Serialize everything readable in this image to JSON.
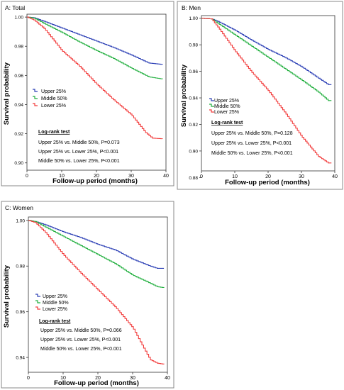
{
  "chart_data": [
    {
      "type": "line",
      "title": "A: Total",
      "xlabel": "Follow-up period (months)",
      "ylabel": "Survival probability",
      "xlim": [
        0,
        40
      ],
      "ylim": [
        0.895,
        1.002
      ],
      "xticks": [
        0,
        10,
        20,
        30,
        40
      ],
      "xtick_labels": [
        "0",
        "10",
        "20",
        "30",
        "40"
      ],
      "yticks": [
        0.9,
        0.92,
        0.94,
        0.96,
        0.98,
        1.0
      ],
      "ytick_labels": [
        "0.90",
        "0.92",
        "0.94",
        "0.96",
        "0.98",
        "1.00"
      ],
      "grid": false,
      "series": [
        {
          "name": "Upper 25%",
          "color": "#2b3fb5",
          "x": [
            0,
            2,
            5,
            10,
            15,
            20,
            25,
            30,
            35,
            39
          ],
          "values": [
            1.0,
            0.9995,
            0.997,
            0.9925,
            0.988,
            0.9835,
            0.979,
            0.974,
            0.9685,
            0.9675
          ]
        },
        {
          "name": "Middle 50%",
          "color": "#1fae3c",
          "x": [
            0,
            2,
            5,
            10,
            15,
            20,
            25,
            30,
            35,
            39
          ],
          "values": [
            1.0,
            0.9993,
            0.9955,
            0.9895,
            0.983,
            0.977,
            0.9715,
            0.965,
            0.959,
            0.9575
          ]
        },
        {
          "name": "Lower 25%",
          "color": "#f23a3a",
          "x": [
            0,
            2,
            5,
            10,
            15,
            20,
            25,
            30,
            34,
            36,
            39
          ],
          "values": [
            1.0,
            0.998,
            0.992,
            0.977,
            0.9665,
            0.954,
            0.943,
            0.933,
            0.921,
            0.917,
            0.9165
          ]
        }
      ],
      "legend_position": "middle-left",
      "annotation_title": "Log-rank test",
      "annotations": [
        "Upper 25% vs. Middle 50%, P=0.073",
        "Upper 25% vs. Lower 25%, P<0.001",
        "Middle 50% vs. Lower 25%, P<0.001"
      ]
    },
    {
      "type": "line",
      "title": "B: Men",
      "xlabel": "Follow-up period (months)",
      "ylabel": "Survival probability",
      "xlim": [
        0,
        40
      ],
      "ylim": [
        0.885,
        1.002
      ],
      "xticks": [
        0,
        10,
        20,
        30,
        40
      ],
      "xtick_labels": [
        "0",
        "10",
        "20",
        "30",
        "40"
      ],
      "yticks": [
        0.88,
        0.9,
        0.92,
        0.94,
        0.96,
        0.98,
        1.0
      ],
      "ytick_labels": [
        "0.88",
        "0.90",
        "0.92",
        "0.94",
        "0.96",
        "0.98",
        "1.00"
      ],
      "grid": false,
      "series": [
        {
          "name": "Upper 25%",
          "color": "#2b3fb5",
          "x": [
            0,
            3,
            5,
            10,
            15,
            20,
            25,
            30,
            35,
            38,
            39
          ],
          "values": [
            1.0,
            0.9995,
            0.9975,
            0.991,
            0.9835,
            0.9765,
            0.9705,
            0.9635,
            0.955,
            0.95,
            0.95
          ]
        },
        {
          "name": "Middle 50%",
          "color": "#1fae3c",
          "x": [
            0,
            3,
            5,
            10,
            15,
            20,
            25,
            30,
            35,
            38,
            39
          ],
          "values": [
            1.0,
            0.9995,
            0.996,
            0.9875,
            0.979,
            0.9705,
            0.962,
            0.9535,
            0.9445,
            0.938,
            0.938
          ]
        },
        {
          "name": "Lower 25%",
          "color": "#f23a3a",
          "x": [
            0,
            3,
            5,
            10,
            15,
            20,
            25,
            30,
            33,
            35,
            38,
            39
          ],
          "values": [
            1.0,
            0.9995,
            0.993,
            0.9755,
            0.9595,
            0.9455,
            0.929,
            0.911,
            0.902,
            0.896,
            0.891,
            0.891
          ]
        }
      ],
      "legend_position": "middle-left",
      "annotation_title": "Log-rank test",
      "annotations": [
        "Upper 25% vs. Middle 50%, P=0.128",
        "Upper 25% vs. Lower 25%, P<0.001",
        "Middle 50% vs. Lower 25%, P<0.001"
      ]
    },
    {
      "type": "line",
      "title": "C: Women",
      "xlabel": "Follow-up period (months)",
      "ylabel": "Survival probability",
      "xlim": [
        0,
        40
      ],
      "ylim": [
        0.9335,
        1.0015
      ],
      "xticks": [
        0,
        10,
        20,
        30,
        40
      ],
      "xtick_labels": [
        "0",
        "10",
        "20",
        "30",
        "40"
      ],
      "yticks": [
        0.94,
        0.96,
        0.98,
        1.0
      ],
      "ytick_labels": [
        "0.94",
        "0.96",
        "0.98",
        "1.00"
      ],
      "grid": false,
      "series": [
        {
          "name": "Upper 25%",
          "color": "#2b3fb5",
          "x": [
            0,
            2,
            5,
            10,
            15,
            20,
            25,
            30,
            35,
            37,
            39
          ],
          "values": [
            1.0,
            0.9995,
            0.998,
            0.995,
            0.9925,
            0.9895,
            0.987,
            0.983,
            0.98,
            0.979,
            0.979
          ]
        },
        {
          "name": "Middle 50%",
          "color": "#1fae3c",
          "x": [
            0,
            2,
            5,
            10,
            15,
            20,
            25,
            30,
            35,
            37,
            39
          ],
          "values": [
            1.0,
            0.9995,
            0.997,
            0.993,
            0.989,
            0.985,
            0.981,
            0.976,
            0.9725,
            0.971,
            0.9705
          ]
        },
        {
          "name": "Lower 25%",
          "color": "#f23a3a",
          "x": [
            0,
            2,
            5,
            10,
            15,
            20,
            25,
            30,
            33,
            35,
            37,
            39
          ],
          "values": [
            1.0,
            0.999,
            0.9945,
            0.985,
            0.977,
            0.9695,
            0.962,
            0.953,
            0.9445,
            0.939,
            0.9375,
            0.937
          ]
        }
      ],
      "legend_position": "middle-left",
      "annotation_title": "Log-rank test",
      "annotations": [
        "Upper 25% vs. Middle 50%, P=0.066",
        "Upper 25% vs. Lower 25%, P<0.001",
        "Middle 50% vs. Lower 25%, P<0.001"
      ]
    }
  ]
}
